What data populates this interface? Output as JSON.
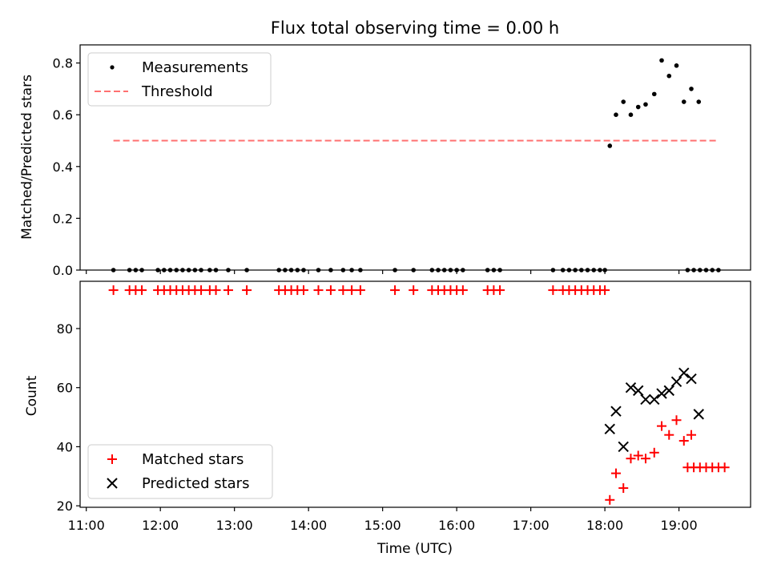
{
  "chart_data": [
    {
      "type": "scatter",
      "panel": "top",
      "title": "Flux total observing time = 0.00 h",
      "xlabel": "",
      "ylabel": "Matched/Predicted stars",
      "xlim": [
        "10:55",
        "19:58"
      ],
      "ylim": [
        0,
        0.87
      ],
      "yticks": [
        0.0,
        0.2,
        0.4,
        0.6,
        0.8
      ],
      "ytick_labels": [
        "0.0",
        "0.2",
        "0.4",
        "0.6",
        "0.8"
      ],
      "grid": false,
      "legend": {
        "placement": "upper-left",
        "entries": [
          "Measurements",
          "Threshold"
        ]
      },
      "series": [
        {
          "name": "Measurements",
          "style": "dot",
          "color": "#000000",
          "points": [
            [
              "11:22",
              0
            ],
            [
              "11:35",
              0
            ],
            [
              "11:40",
              0
            ],
            [
              "11:45",
              0
            ],
            [
              "11:58",
              0
            ],
            [
              "12:03",
              0
            ],
            [
              "12:08",
              0
            ],
            [
              "12:13",
              0
            ],
            [
              "12:18",
              0
            ],
            [
              "12:23",
              0
            ],
            [
              "12:28",
              0
            ],
            [
              "12:33",
              0
            ],
            [
              "12:40",
              0
            ],
            [
              "12:45",
              0
            ],
            [
              "12:55",
              0
            ],
            [
              "13:10",
              0
            ],
            [
              "13:36",
              0
            ],
            [
              "13:41",
              0
            ],
            [
              "13:46",
              0
            ],
            [
              "13:51",
              0
            ],
            [
              "13:56",
              0
            ],
            [
              "14:08",
              0
            ],
            [
              "14:18",
              0
            ],
            [
              "14:28",
              0
            ],
            [
              "14:35",
              0
            ],
            [
              "14:42",
              0
            ],
            [
              "15:10",
              0
            ],
            [
              "15:25",
              0
            ],
            [
              "15:40",
              0
            ],
            [
              "15:45",
              0
            ],
            [
              "15:50",
              0
            ],
            [
              "15:55",
              0
            ],
            [
              "16:00",
              0
            ],
            [
              "16:05",
              0
            ],
            [
              "16:25",
              0
            ],
            [
              "16:30",
              0
            ],
            [
              "16:35",
              0
            ],
            [
              "17:18",
              0
            ],
            [
              "17:26",
              0
            ],
            [
              "17:31",
              0
            ],
            [
              "17:36",
              0
            ],
            [
              "17:41",
              0
            ],
            [
              "17:46",
              0
            ],
            [
              "17:51",
              0
            ],
            [
              "17:56",
              0
            ],
            [
              "18:00",
              0
            ],
            [
              "18:04",
              0.48
            ],
            [
              "18:09",
              0.6
            ],
            [
              "18:15",
              0.65
            ],
            [
              "18:21",
              0.6
            ],
            [
              "18:27",
              0.63
            ],
            [
              "18:33",
              0.64
            ],
            [
              "18:40",
              0.68
            ],
            [
              "18:46",
              0.81
            ],
            [
              "18:52",
              0.75
            ],
            [
              "18:58",
              0.79
            ],
            [
              "19:04",
              0.65
            ],
            [
              "19:10",
              0.7
            ],
            [
              "19:16",
              0.65
            ],
            [
              "19:07",
              0
            ],
            [
              "19:12",
              0
            ],
            [
              "19:17",
              0
            ],
            [
              "19:22",
              0
            ],
            [
              "19:27",
              0
            ],
            [
              "19:32",
              0
            ]
          ]
        },
        {
          "name": "Threshold",
          "style": "dashed",
          "color": "#ff7070",
          "points": [
            [
              "11:22",
              0.5
            ],
            [
              "19:32",
              0.5
            ]
          ]
        }
      ]
    },
    {
      "type": "scatter",
      "panel": "bottom",
      "title": "",
      "xlabel": "Time (UTC)",
      "ylabel": "Count",
      "xlim": [
        "10:55",
        "19:58"
      ],
      "ylim": [
        19.5,
        96
      ],
      "yticks": [
        20,
        40,
        60,
        80
      ],
      "ytick_labels": [
        "20",
        "40",
        "60",
        "80"
      ],
      "xticks": [
        "11:00",
        "12:00",
        "13:00",
        "14:00",
        "15:00",
        "16:00",
        "17:00",
        "18:00",
        "19:00"
      ],
      "grid": false,
      "legend": {
        "placement": "lower-left",
        "entries": [
          "Matched stars",
          "Predicted stars"
        ]
      },
      "series": [
        {
          "name": "Matched stars",
          "style": "plus",
          "color": "#ff0000",
          "points": [
            [
              "11:22",
              93
            ],
            [
              "11:35",
              93
            ],
            [
              "11:40",
              93
            ],
            [
              "11:45",
              93
            ],
            [
              "11:58",
              93
            ],
            [
              "12:03",
              93
            ],
            [
              "12:08",
              93
            ],
            [
              "12:13",
              93
            ],
            [
              "12:18",
              93
            ],
            [
              "12:23",
              93
            ],
            [
              "12:28",
              93
            ],
            [
              "12:33",
              93
            ],
            [
              "12:40",
              93
            ],
            [
              "12:45",
              93
            ],
            [
              "12:55",
              93
            ],
            [
              "13:10",
              93
            ],
            [
              "13:36",
              93
            ],
            [
              "13:41",
              93
            ],
            [
              "13:46",
              93
            ],
            [
              "13:51",
              93
            ],
            [
              "13:56",
              93
            ],
            [
              "14:08",
              93
            ],
            [
              "14:18",
              93
            ],
            [
              "14:28",
              93
            ],
            [
              "14:35",
              93
            ],
            [
              "14:42",
              93
            ],
            [
              "15:10",
              93
            ],
            [
              "15:25",
              93
            ],
            [
              "15:40",
              93
            ],
            [
              "15:45",
              93
            ],
            [
              "15:50",
              93
            ],
            [
              "15:55",
              93
            ],
            [
              "16:00",
              93
            ],
            [
              "16:05",
              93
            ],
            [
              "16:25",
              93
            ],
            [
              "16:30",
              93
            ],
            [
              "16:35",
              93
            ],
            [
              "17:18",
              93
            ],
            [
              "17:26",
              93
            ],
            [
              "17:31",
              93
            ],
            [
              "17:36",
              93
            ],
            [
              "17:41",
              93
            ],
            [
              "17:46",
              93
            ],
            [
              "17:51",
              93
            ],
            [
              "17:56",
              93
            ],
            [
              "18:00",
              93
            ],
            [
              "18:04",
              22
            ],
            [
              "18:09",
              31
            ],
            [
              "18:15",
              26
            ],
            [
              "18:21",
              36
            ],
            [
              "18:27",
              37
            ],
            [
              "18:33",
              36
            ],
            [
              "18:40",
              38
            ],
            [
              "18:46",
              47
            ],
            [
              "18:52",
              44
            ],
            [
              "18:58",
              49
            ],
            [
              "19:04",
              42
            ],
            [
              "19:10",
              44
            ],
            [
              "19:07",
              33
            ],
            [
              "19:12",
              33
            ],
            [
              "19:17",
              33
            ],
            [
              "19:22",
              33
            ],
            [
              "19:27",
              33
            ],
            [
              "19:32",
              33
            ],
            [
              "19:37",
              33
            ]
          ]
        },
        {
          "name": "Predicted stars",
          "style": "x",
          "color": "#000000",
          "points": [
            [
              "18:04",
              46
            ],
            [
              "18:09",
              52
            ],
            [
              "18:15",
              40
            ],
            [
              "18:21",
              60
            ],
            [
              "18:27",
              59
            ],
            [
              "18:33",
              56
            ],
            [
              "18:40",
              56
            ],
            [
              "18:46",
              58
            ],
            [
              "18:52",
              59
            ],
            [
              "18:58",
              62
            ],
            [
              "19:04",
              65
            ],
            [
              "19:10",
              63
            ],
            [
              "19:16",
              51
            ]
          ]
        }
      ]
    }
  ]
}
